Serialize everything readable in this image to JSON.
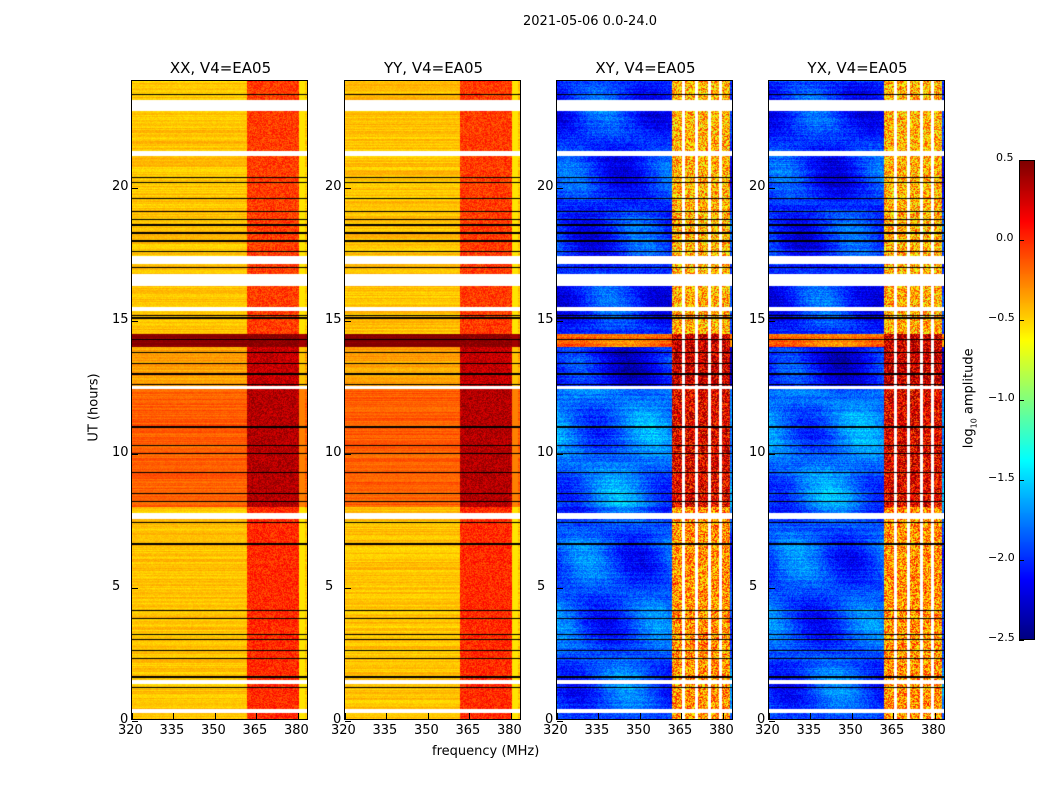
{
  "chart_data": {
    "type": "heatmap",
    "title": "2021-05-06 0.0-24.0",
    "xlabel": "frequency (MHz)",
    "ylabel": "UT (hours)",
    "xlim": [
      320,
      384
    ],
    "ylim": [
      0,
      24
    ],
    "xticks": [
      "320",
      "335",
      "350",
      "365",
      "380"
    ],
    "xtick_values": [
      320,
      335,
      350,
      365,
      380
    ],
    "yticks": [
      "0",
      "5",
      "10",
      "15",
      "20"
    ],
    "ytick_values": [
      0,
      5,
      10,
      15,
      20
    ],
    "colorbar": {
      "label": "log10 amplitude",
      "label_main": "log",
      "label_sub": "10",
      "label_rest": " amplitude",
      "range": [
        -2.5,
        0.5
      ],
      "ticks": [
        "0.5",
        "0.0",
        "−0.5",
        "−1.0",
        "−1.5",
        "−2.0",
        "−2.5"
      ],
      "tick_values": [
        0.5,
        0.0,
        -0.5,
        -1.0,
        -1.5,
        -2.0,
        -2.5
      ],
      "colormap": "jet"
    },
    "band_start_mhz": 362,
    "flagged_ut_ranges": [
      [
        0.25,
        0.4
      ],
      [
        1.35,
        1.5
      ],
      [
        7.55,
        7.75
      ],
      [
        12.45,
        12.55
      ],
      [
        15.35,
        15.5
      ],
      [
        16.3,
        16.75
      ],
      [
        17.15,
        17.45
      ],
      [
        21.2,
        21.4
      ],
      [
        22.9,
        23.3
      ]
    ],
    "dark_lines_ut": [
      1.2,
      1.6,
      2.3,
      2.6,
      3.0,
      3.2,
      3.8,
      4.1,
      6.6,
      7.4,
      8.2,
      8.5,
      9.3,
      10.0,
      10.3,
      11.0,
      12.6,
      13.0,
      13.4,
      13.8,
      14.3,
      15.1,
      15.2,
      17.0,
      17.6,
      18.0,
      18.3,
      18.6,
      18.8,
      19.1,
      19.6,
      20.2,
      20.4,
      23.5
    ],
    "panels": [
      {
        "title": "XX, V4=EA05",
        "segments": [
          {
            "ut": [
              0,
              8
            ],
            "base": -0.45,
            "band": 0.0
          },
          {
            "ut": [
              8,
              12.5
            ],
            "base": -0.15,
            "band": 0.35
          },
          {
            "ut": [
              12.5,
              14
            ],
            "base": -0.35,
            "band": 0.3
          },
          {
            "ut": [
              14,
              14.5
            ],
            "base": 0.5,
            "band": 0.5
          },
          {
            "ut": [
              14.5,
              24
            ],
            "base": -0.45,
            "band": -0.05
          }
        ]
      },
      {
        "title": "YY, V4=EA05",
        "segments": [
          {
            "ut": [
              0,
              8
            ],
            "base": -0.45,
            "band": 0.0
          },
          {
            "ut": [
              8,
              12.5
            ],
            "base": -0.15,
            "band": 0.35
          },
          {
            "ut": [
              12.5,
              14
            ],
            "base": -0.35,
            "band": 0.3
          },
          {
            "ut": [
              14,
              14.5
            ],
            "base": 0.5,
            "band": 0.5
          },
          {
            "ut": [
              14.5,
              24
            ],
            "base": -0.45,
            "band": -0.05
          }
        ]
      },
      {
        "title": "XY, V4=EA05",
        "segments": [
          {
            "ut": [
              0,
              8
            ],
            "base": -1.9,
            "band": -0.3
          },
          {
            "ut": [
              8,
              12.5
            ],
            "base": -1.8,
            "band": 0.2
          },
          {
            "ut": [
              12.5,
              14
            ],
            "base": -2.1,
            "band": 0.3
          },
          {
            "ut": [
              14,
              14.5
            ],
            "base": -0.2,
            "band": 0.3
          },
          {
            "ut": [
              14.5,
              24
            ],
            "base": -2.0,
            "band": -0.4
          }
        ]
      },
      {
        "title": "YX, V4=EA05",
        "segments": [
          {
            "ut": [
              0,
              8
            ],
            "base": -1.9,
            "band": -0.3
          },
          {
            "ut": [
              8,
              12.5
            ],
            "base": -1.8,
            "band": 0.2
          },
          {
            "ut": [
              12.5,
              14
            ],
            "base": -2.1,
            "band": 0.3
          },
          {
            "ut": [
              14,
              14.5
            ],
            "base": -0.2,
            "band": 0.3
          },
          {
            "ut": [
              14.5,
              24
            ],
            "base": -2.0,
            "band": -0.4
          }
        ]
      }
    ]
  }
}
